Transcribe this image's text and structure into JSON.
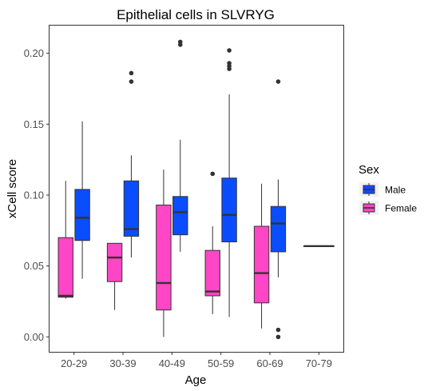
{
  "chart_data": {
    "type": "box",
    "title": "Epithelial cells in SLVRYG",
    "xlabel": "Age",
    "ylabel": "xCell score",
    "categories": [
      "20-29",
      "30-39",
      "40-49",
      "50-59",
      "60-69",
      "70-79"
    ],
    "ylim": [
      -0.0105,
      0.2195
    ],
    "yticks": [
      0.0,
      0.05,
      0.1,
      0.15,
      0.2
    ],
    "ytick_labels": [
      "0.00",
      "0.05",
      "0.10",
      "0.15",
      "0.20"
    ],
    "grid": false,
    "legend": {
      "title": "Sex",
      "position": "right"
    },
    "series": [
      {
        "name": "Male",
        "color": "#0a4dff",
        "boxes": [
          {
            "category": "20-29",
            "min": 0.041,
            "q1": 0.068,
            "median": 0.084,
            "q3": 0.104,
            "max": 0.152,
            "outliers": []
          },
          {
            "category": "30-39",
            "min": 0.056,
            "q1": 0.071,
            "median": 0.076,
            "q3": 0.11,
            "max": 0.128,
            "outliers": [
              0.186,
              0.18
            ]
          },
          {
            "category": "40-49",
            "min": 0.06,
            "q1": 0.072,
            "median": 0.088,
            "q3": 0.099,
            "max": 0.139,
            "outliers": [
              0.208,
              0.206
            ]
          },
          {
            "category": "50-59",
            "min": 0.014,
            "q1": 0.067,
            "median": 0.086,
            "q3": 0.112,
            "max": 0.171,
            "outliers": [
              0.202,
              0.193,
              0.191,
              0.189
            ]
          },
          {
            "category": "60-69",
            "min": 0.042,
            "q1": 0.06,
            "median": 0.08,
            "q3": 0.092,
            "max": 0.111,
            "outliers": [
              0.18,
              0.005,
              0.0
            ]
          }
        ]
      },
      {
        "name": "Female",
        "color": "#ff46c7",
        "boxes": [
          {
            "category": "20-29",
            "min": 0.027,
            "q1": 0.028,
            "median": 0.029,
            "q3": 0.07,
            "max": 0.11,
            "outliers": []
          },
          {
            "category": "30-39",
            "min": 0.019,
            "q1": 0.039,
            "median": 0.056,
            "q3": 0.066,
            "max": 0.066,
            "outliers": []
          },
          {
            "category": "40-49",
            "min": 0.0,
            "q1": 0.019,
            "median": 0.038,
            "q3": 0.093,
            "max": 0.118,
            "outliers": []
          },
          {
            "category": "50-59",
            "min": 0.016,
            "q1": 0.029,
            "median": 0.032,
            "q3": 0.061,
            "max": 0.078,
            "outliers": [
              0.115
            ]
          },
          {
            "category": "60-69",
            "min": 0.006,
            "q1": 0.024,
            "median": 0.045,
            "q3": 0.078,
            "max": 0.108,
            "outliers": []
          }
        ]
      },
      {
        "name": "",
        "color": "#888888",
        "boxes": [
          {
            "category": "70-79",
            "min": 0.064,
            "q1": 0.064,
            "median": 0.064,
            "q3": 0.064,
            "max": 0.064,
            "outliers": []
          }
        ]
      }
    ]
  }
}
